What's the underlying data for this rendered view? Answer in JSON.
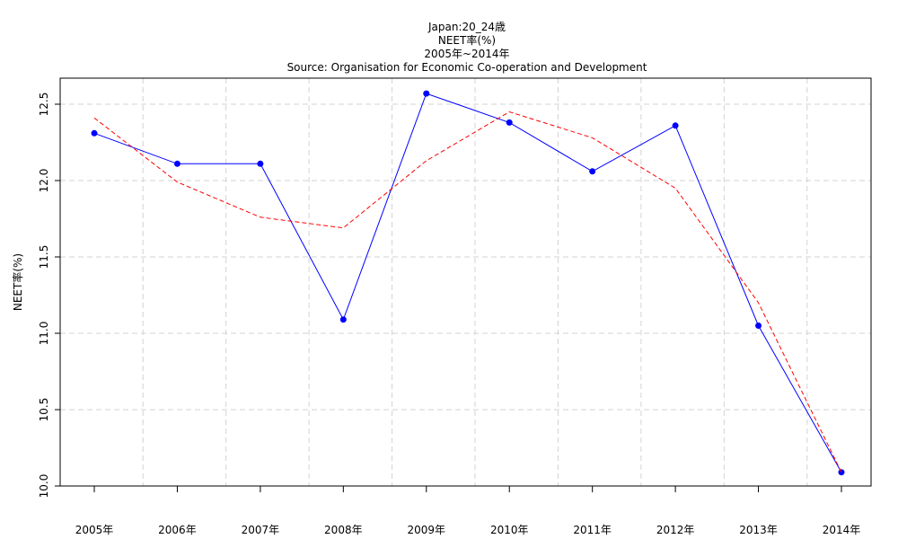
{
  "chart_data": {
    "type": "line",
    "title_lines": [
      "Japan:20_24歳",
      "NEET率(%)",
      "2005年~2014年",
      "Source: Organisation for Economic Co-operation and Development"
    ],
    "xlabel": "",
    "ylabel": "NEET率(%)",
    "categories": [
      "2005年",
      "2006年",
      "2007年",
      "2008年",
      "2009年",
      "2010年",
      "2011年",
      "2012年",
      "2013年",
      "2014年"
    ],
    "ylim": [
      10.0,
      12.5
    ],
    "yticks": [
      10.0,
      10.5,
      11.0,
      11.5,
      12.0,
      12.5
    ],
    "grid": true,
    "series": [
      {
        "values": [
          12.31,
          12.11,
          12.11,
          11.09,
          12.57,
          12.38,
          12.06,
          12.36,
          11.05,
          10.09
        ],
        "color": "#0000ff",
        "style": "solid",
        "markers": true
      },
      {
        "values": [
          12.41,
          11.99,
          11.76,
          11.69,
          12.13,
          12.45,
          12.28,
          11.95,
          11.2,
          10.09
        ],
        "color": "#ff0000",
        "style": "dashed",
        "markers": false
      }
    ]
  }
}
